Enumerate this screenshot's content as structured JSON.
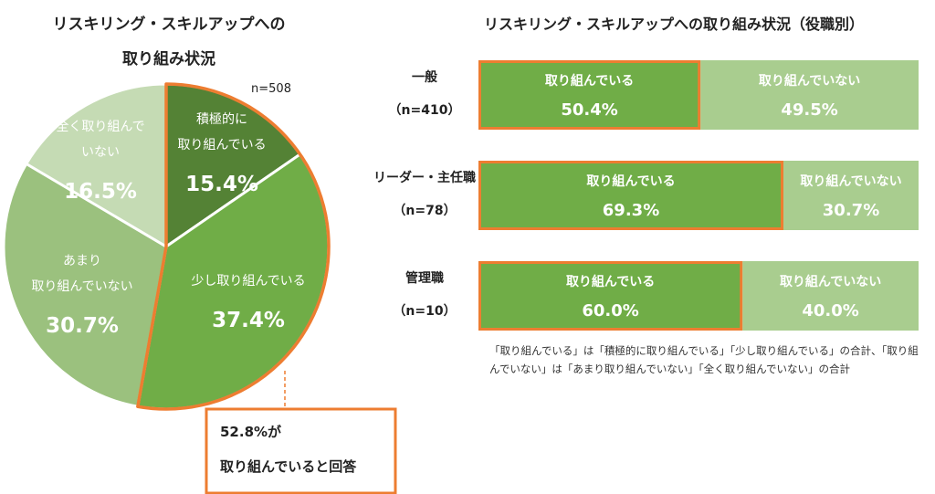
{
  "chart_data": [
    {
      "type": "pie",
      "title_line1": "リスキリング・スキルアップへの",
      "title_line2": "取り組み状況",
      "sample": "n=508",
      "slices": [
        {
          "label_lines": [
            "積極的に",
            "取り組んでいる"
          ],
          "value": 15.4,
          "value_label": "15.4%",
          "color": "#548235",
          "text_color": "#ffffff"
        },
        {
          "label_lines": [
            "少し取り組んでいる"
          ],
          "value": 37.4,
          "value_label": "37.4%",
          "color": "#70ad47",
          "text_color": "#ffffff"
        },
        {
          "label_lines": [
            "あまり",
            "取り組んでいない"
          ],
          "value": 30.7,
          "value_label": "30.7%",
          "color": "#9bc17e",
          "text_color": "#ffffff"
        },
        {
          "label_lines": [
            "全く取り組んで",
            "いない"
          ],
          "value": 16.5,
          "value_label": "16.5%",
          "color": "#c5dbb4",
          "text_color": "#ffffff"
        }
      ],
      "callout": {
        "line1": "52.8%が",
        "line2": "取り組んでいると回答",
        "color": "#ed7d31"
      }
    },
    {
      "type": "bar",
      "orientation": "horizontal",
      "stacked": true,
      "title": "リスキリング・スキルアップへの取り組み状況（役職別）",
      "categories": [
        {
          "name": "一般",
          "n": "（n=410）"
        },
        {
          "name": "リーダー・主任職",
          "n": "（n=78）"
        },
        {
          "name": "管理職",
          "n": "（n=10）"
        }
      ],
      "series": [
        {
          "name": "取り組んでいる",
          "values": [
            50.4,
            69.3,
            60.0
          ],
          "value_labels": [
            "50.4%",
            "69.3%",
            "60.0%"
          ],
          "color": "#70ad47",
          "border": "#ed7d31"
        },
        {
          "name": "取り組んでいない",
          "values": [
            49.5,
            30.7,
            40.0
          ],
          "value_labels": [
            "49.5%",
            "30.7%",
            "40.0%"
          ],
          "color": "#a9cd8f"
        }
      ],
      "note": "「取り組んでいる」は「積極的に取り組んでいる」「少し取り組んでいる」の合計、「取り組んでいない」は「あまり取り組んでいない」「全く取り組んでいない」の合計"
    }
  ]
}
